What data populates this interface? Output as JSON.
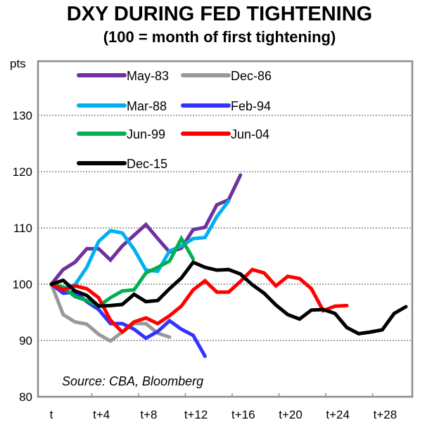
{
  "chart_data": {
    "type": "line",
    "title": "DXY DURING FED TIGHTENING",
    "subtitle": "(100 = month of first tightening)",
    "ylabel": "pts",
    "xlabel": "",
    "ylim": [
      80,
      135
    ],
    "yticks": [
      80,
      90,
      100,
      110,
      120,
      130
    ],
    "gridlines_y": [
      90,
      100,
      110,
      120,
      130
    ],
    "grid": true,
    "x_range": [
      0,
      30
    ],
    "xtick_labels": [
      {
        "month": 0,
        "label": "t"
      },
      {
        "month": 4,
        "label": "t+4"
      },
      {
        "month": 8,
        "label": "t+8"
      },
      {
        "month": 12,
        "label": "t+12"
      },
      {
        "month": 16,
        "label": "t+16"
      },
      {
        "month": 20,
        "label": "t+20"
      },
      {
        "month": 24,
        "label": "t+24"
      },
      {
        "month": 28,
        "label": "t+28"
      }
    ],
    "legend_placement": "top-left",
    "annotation": "Source: CBA, Bloomberg",
    "series": [
      {
        "name": "May-83",
        "color": "#7030A0",
        "values": [
          100,
          102.6,
          103.9,
          106.3,
          106.3,
          104.3,
          106.8,
          108.7,
          110.6,
          108.1,
          105.7,
          106.4,
          109.7,
          110.1,
          114.1,
          115.0,
          119.4
        ]
      },
      {
        "name": "Dec-86",
        "color": "#999999",
        "values": [
          100,
          94.6,
          93.3,
          92.9,
          91.1,
          89.9,
          91.5,
          93.0,
          93.0,
          91.3,
          90.6
        ]
      },
      {
        "name": "Mar-88",
        "color": "#00B0F0",
        "values": [
          100,
          99.3,
          99.9,
          103.0,
          107.6,
          109.5,
          109.1,
          106.2,
          102.5,
          102.3,
          105.9,
          106.8,
          108.1,
          108.3,
          112.0,
          114.8
        ]
      },
      {
        "name": "Feb-94",
        "color": "#3333FF",
        "values": [
          100,
          98.4,
          98.6,
          96.9,
          95.5,
          93.0,
          93.0,
          92.0,
          90.4,
          91.6,
          93.5,
          92.0,
          90.9,
          87.2
        ]
      },
      {
        "name": "Jun-99",
        "color": "#00B050",
        "values": [
          100,
          99.5,
          97.8,
          97.1,
          96.1,
          97.6,
          98.8,
          99.0,
          102.0,
          103.0,
          104.1,
          108.1,
          104.5
        ]
      },
      {
        "name": "Jun-04",
        "color": "#FF0000",
        "values": [
          100,
          99.0,
          99.7,
          99.2,
          97.6,
          93.6,
          91.5,
          93.3,
          94.0,
          93.0,
          94.4,
          96.1,
          99.0,
          100.6,
          98.6,
          98.6,
          100.5,
          102.6,
          102.0,
          99.7,
          101.4,
          101.0,
          99.2,
          95.3,
          96.1,
          96.2
        ]
      },
      {
        "name": "Dec-15",
        "color": "#000000",
        "values": [
          100,
          100.7,
          98.8,
          98.0,
          96.1,
          96.2,
          96.4,
          98.2,
          96.9,
          97.1,
          99.2,
          101.1,
          103.9,
          103.0,
          102.5,
          102.6,
          101.8,
          99.9,
          98.4,
          96.3,
          94.6,
          93.8,
          95.4,
          95.5,
          94.8,
          92.3,
          91.2,
          91.5,
          91.9,
          94.8,
          96.0
        ]
      }
    ]
  }
}
